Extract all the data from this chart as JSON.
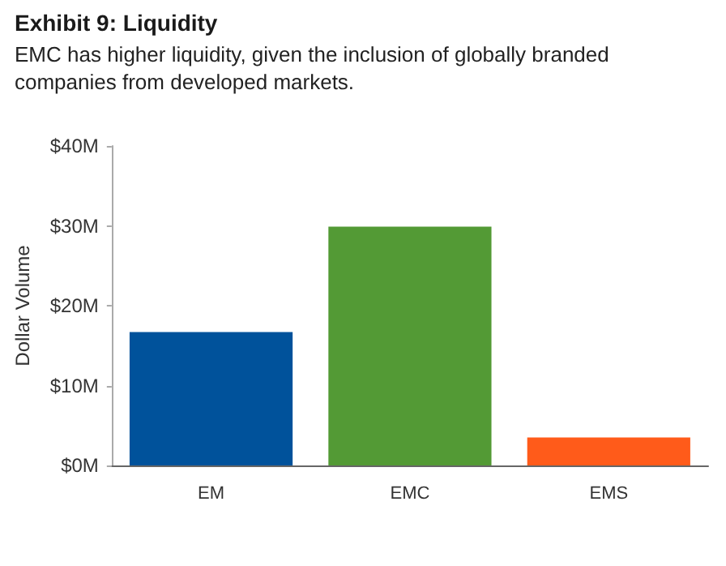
{
  "chart_data": {
    "type": "bar",
    "title": "Exhibit 9: Liquidity",
    "subtitle": "EMC has higher liquidity, given the inclusion of globally branded companies from developed markets.",
    "ylabel": "Dollar Volume",
    "categories": [
      "EM",
      "EMC",
      "EMS"
    ],
    "values": [
      16.7,
      29.9,
      3.5
    ],
    "colors": [
      "#00529b",
      "#539a35",
      "#ff5b1a"
    ],
    "ylim": [
      0,
      40
    ],
    "yticks": [
      {
        "value": 0,
        "label": "$0M"
      },
      {
        "value": 10,
        "label": "$10M"
      },
      {
        "value": 20,
        "label": "$20M"
      },
      {
        "value": 30,
        "label": "$30M"
      },
      {
        "value": 40,
        "label": "$40M"
      }
    ]
  }
}
